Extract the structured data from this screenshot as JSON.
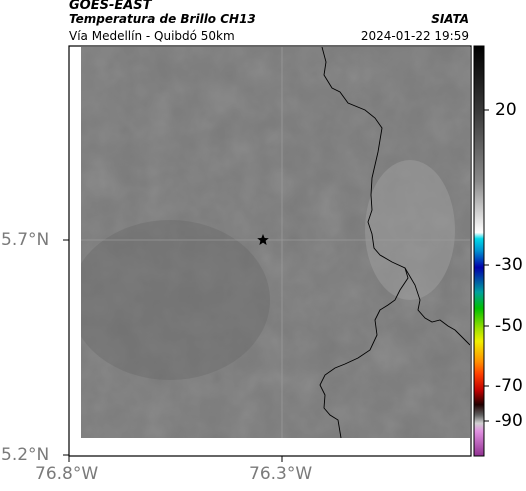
{
  "header": {
    "satellite": "GOES-EAST",
    "product": "Temperatura de Brillo CH13",
    "region": "Vía Medellín - Quibdó 50km",
    "organization": "SIATA",
    "timestamp": "2024-01-22 19:59"
  },
  "map": {
    "lat_ticks": [
      "5.7°N",
      "5.2°N"
    ],
    "lon_ticks": [
      "76.8°W",
      "76.3°W"
    ],
    "marker": "star-icon",
    "background_gray": "#7b7b7b",
    "coastline_color": "#000000",
    "gridline_color": "#9a9a9a"
  },
  "colorbar": {
    "tick_labels": [
      "20",
      "-30",
      "-50",
      "-70",
      "-90"
    ],
    "segments": [
      "#000000",
      "#8a8a8a",
      "#ffffff",
      "#00c8d8",
      "#0000aa",
      "#00c000",
      "#f0f000",
      "#ff6000",
      "#c00000",
      "#200000",
      "#c0c0c0",
      "#a040a0"
    ]
  }
}
